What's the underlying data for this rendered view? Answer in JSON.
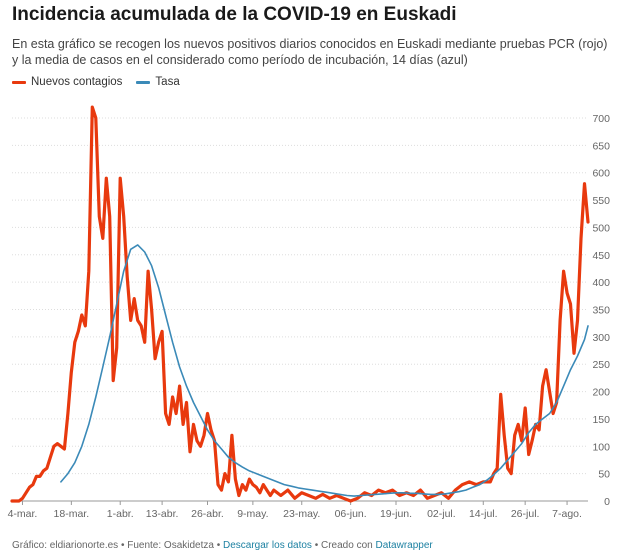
{
  "header": {
    "title": "Incidencia acumulada de la COVID-19 en Euskadi",
    "subtitle": "En esta gráfico se recogen los nuevos positivos diarios conocidos en Euskadi mediante pruebas PCR (rojo) y la media de casos en el considerado como período de incubación, 14 días (azul)"
  },
  "colors": {
    "nuevos": "#e8390e",
    "tasa": "#3b8ab8",
    "grid": "#dddddd",
    "axis": "#999999"
  },
  "footer": {
    "source": "Gráfico: eldiarionorte.es • Fuente: Osakidetza •",
    "download": "Descargar los datos",
    "created": "• Creado con",
    "tool": "Datawrapper"
  },
  "chart_data": {
    "type": "line",
    "title": "Incidencia acumulada de la COVID-19 en Euskadi",
    "xlabel": "",
    "ylabel": "",
    "ylim": [
      0,
      700
    ],
    "yticks": [
      0,
      50,
      100,
      150,
      200,
      250,
      300,
      350,
      400,
      450,
      500,
      550,
      600,
      650,
      700
    ],
    "x_axis": "days from 2020-03-01 to 2020-08-12",
    "xticks": [
      {
        "day": 3,
        "label": "4-mar."
      },
      {
        "day": 17,
        "label": "18-mar."
      },
      {
        "day": 31,
        "label": "1-abr."
      },
      {
        "day": 43,
        "label": "13-abr."
      },
      {
        "day": 56,
        "label": "26-abr."
      },
      {
        "day": 69,
        "label": "9-may."
      },
      {
        "day": 83,
        "label": "23-may."
      },
      {
        "day": 97,
        "label": "06-jun."
      },
      {
        "day": 110,
        "label": "19-jun."
      },
      {
        "day": 123,
        "label": "02-jul."
      },
      {
        "day": 135,
        "label": "14-jul."
      },
      {
        "day": 147,
        "label": "26-jul."
      },
      {
        "day": 159,
        "label": "7-ago."
      }
    ],
    "grid": true,
    "legend_position": "top-left",
    "series": [
      {
        "name": "Nuevos contagios",
        "color": "#e8390e",
        "points": [
          [
            0,
            0
          ],
          [
            2,
            0
          ],
          [
            3,
            5
          ],
          [
            4,
            15
          ],
          [
            5,
            25
          ],
          [
            6,
            30
          ],
          [
            7,
            45
          ],
          [
            8,
            45
          ],
          [
            9,
            55
          ],
          [
            10,
            60
          ],
          [
            11,
            80
          ],
          [
            12,
            100
          ],
          [
            13,
            105
          ],
          [
            14,
            100
          ],
          [
            15,
            95
          ],
          [
            16,
            160
          ],
          [
            17,
            235
          ],
          [
            18,
            290
          ],
          [
            19,
            310
          ],
          [
            20,
            340
          ],
          [
            21,
            320
          ],
          [
            22,
            420
          ],
          [
            23,
            720
          ],
          [
            24,
            700
          ],
          [
            25,
            520
          ],
          [
            26,
            480
          ],
          [
            27,
            590
          ],
          [
            28,
            520
          ],
          [
            29,
            220
          ],
          [
            30,
            280
          ],
          [
            31,
            590
          ],
          [
            32,
            520
          ],
          [
            33,
            410
          ],
          [
            34,
            330
          ],
          [
            35,
            370
          ],
          [
            36,
            330
          ],
          [
            37,
            320
          ],
          [
            38,
            290
          ],
          [
            39,
            420
          ],
          [
            40,
            350
          ],
          [
            41,
            260
          ],
          [
            42,
            290
          ],
          [
            43,
            310
          ],
          [
            44,
            160
          ],
          [
            45,
            140
          ],
          [
            46,
            190
          ],
          [
            47,
            160
          ],
          [
            48,
            210
          ],
          [
            49,
            140
          ],
          [
            50,
            180
          ],
          [
            51,
            90
          ],
          [
            52,
            140
          ],
          [
            53,
            110
          ],
          [
            54,
            100
          ],
          [
            55,
            120
          ],
          [
            56,
            160
          ],
          [
            57,
            130
          ],
          [
            58,
            110
          ],
          [
            59,
            30
          ],
          [
            60,
            20
          ],
          [
            61,
            50
          ],
          [
            62,
            35
          ],
          [
            63,
            120
          ],
          [
            64,
            40
          ],
          [
            65,
            10
          ],
          [
            66,
            30
          ],
          [
            67,
            20
          ],
          [
            68,
            40
          ],
          [
            69,
            30
          ],
          [
            70,
            25
          ],
          [
            71,
            15
          ],
          [
            72,
            30
          ],
          [
            73,
            20
          ],
          [
            74,
            10
          ],
          [
            75,
            20
          ],
          [
            77,
            10
          ],
          [
            79,
            20
          ],
          [
            81,
            5
          ],
          [
            83,
            15
          ],
          [
            85,
            10
          ],
          [
            87,
            5
          ],
          [
            89,
            12
          ],
          [
            91,
            5
          ],
          [
            93,
            10
          ],
          [
            95,
            5
          ],
          [
            97,
            0
          ],
          [
            99,
            5
          ],
          [
            101,
            15
          ],
          [
            103,
            10
          ],
          [
            105,
            20
          ],
          [
            107,
            15
          ],
          [
            109,
            20
          ],
          [
            111,
            10
          ],
          [
            113,
            15
          ],
          [
            115,
            10
          ],
          [
            117,
            20
          ],
          [
            119,
            5
          ],
          [
            121,
            10
          ],
          [
            123,
            15
          ],
          [
            125,
            5
          ],
          [
            127,
            20
          ],
          [
            129,
            30
          ],
          [
            131,
            35
          ],
          [
            133,
            30
          ],
          [
            135,
            35
          ],
          [
            137,
            35
          ],
          [
            138,
            50
          ],
          [
            139,
            60
          ],
          [
            140,
            195
          ],
          [
            141,
            120
          ],
          [
            142,
            60
          ],
          [
            143,
            50
          ],
          [
            144,
            120
          ],
          [
            145,
            140
          ],
          [
            146,
            110
          ],
          [
            147,
            170
          ],
          [
            148,
            85
          ],
          [
            149,
            110
          ],
          [
            150,
            140
          ],
          [
            151,
            130
          ],
          [
            152,
            210
          ],
          [
            153,
            240
          ],
          [
            154,
            200
          ],
          [
            155,
            160
          ],
          [
            156,
            180
          ],
          [
            157,
            330
          ],
          [
            158,
            420
          ],
          [
            159,
            380
          ],
          [
            160,
            360
          ],
          [
            161,
            270
          ],
          [
            162,
            330
          ],
          [
            163,
            480
          ],
          [
            164,
            580
          ],
          [
            165,
            510
          ]
        ]
      },
      {
        "name": "Tasa",
        "color": "#3b8ab8",
        "points": [
          [
            14,
            35
          ],
          [
            16,
            50
          ],
          [
            18,
            70
          ],
          [
            20,
            100
          ],
          [
            22,
            140
          ],
          [
            24,
            190
          ],
          [
            26,
            245
          ],
          [
            28,
            300
          ],
          [
            30,
            360
          ],
          [
            32,
            420
          ],
          [
            34,
            460
          ],
          [
            36,
            468
          ],
          [
            38,
            455
          ],
          [
            40,
            430
          ],
          [
            42,
            390
          ],
          [
            44,
            340
          ],
          [
            46,
            290
          ],
          [
            48,
            245
          ],
          [
            50,
            210
          ],
          [
            52,
            180
          ],
          [
            54,
            155
          ],
          [
            56,
            130
          ],
          [
            58,
            110
          ],
          [
            60,
            95
          ],
          [
            62,
            80
          ],
          [
            64,
            70
          ],
          [
            66,
            62
          ],
          [
            68,
            55
          ],
          [
            70,
            50
          ],
          [
            72,
            45
          ],
          [
            74,
            40
          ],
          [
            76,
            35
          ],
          [
            78,
            30
          ],
          [
            80,
            27
          ],
          [
            82,
            24
          ],
          [
            84,
            22
          ],
          [
            86,
            20
          ],
          [
            88,
            18
          ],
          [
            90,
            16
          ],
          [
            92,
            14
          ],
          [
            94,
            12
          ],
          [
            96,
            10
          ],
          [
            98,
            9
          ],
          [
            100,
            10
          ],
          [
            102,
            11
          ],
          [
            104,
            12
          ],
          [
            106,
            13
          ],
          [
            108,
            14
          ],
          [
            110,
            15
          ],
          [
            112,
            15
          ],
          [
            114,
            14
          ],
          [
            116,
            14
          ],
          [
            118,
            13
          ],
          [
            120,
            12
          ],
          [
            122,
            12
          ],
          [
            124,
            13
          ],
          [
            126,
            15
          ],
          [
            128,
            17
          ],
          [
            130,
            20
          ],
          [
            132,
            25
          ],
          [
            134,
            30
          ],
          [
            136,
            38
          ],
          [
            138,
            48
          ],
          [
            140,
            60
          ],
          [
            142,
            75
          ],
          [
            144,
            90
          ],
          [
            146,
            105
          ],
          [
            148,
            125
          ],
          [
            150,
            140
          ],
          [
            152,
            150
          ],
          [
            154,
            160
          ],
          [
            156,
            180
          ],
          [
            158,
            210
          ],
          [
            160,
            240
          ],
          [
            162,
            265
          ],
          [
            164,
            295
          ],
          [
            165,
            320
          ]
        ]
      }
    ]
  }
}
